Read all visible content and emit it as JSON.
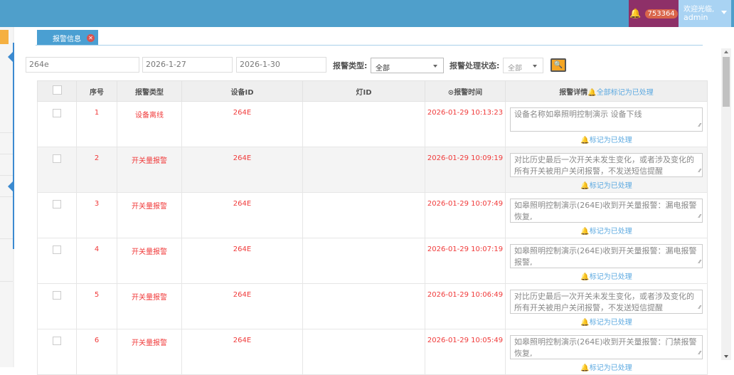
{
  "header": {
    "notification_count": "753364",
    "welcome": "欢迎光临,",
    "user": "admin"
  },
  "tab": {
    "label": "报警信息",
    "close": "✕"
  },
  "filters": {
    "keyword": "264e",
    "start_date": "2026-1-27",
    "end_date": "2026-1-30",
    "type_label": "报警类型:",
    "type_value": "全部",
    "status_label": "报警处理状态:",
    "status_value": "全部"
  },
  "table": {
    "headers": [
      "序号",
      "报警类型",
      "设备ID",
      "灯ID",
      "报警时间",
      "报警详情"
    ],
    "mark_all": "全部标记为已处理",
    "mark_label": "标记为已处理",
    "rows": [
      {
        "no": "1",
        "type": "设备离线",
        "device": "264E",
        "lamp": "",
        "time": "2026-01-29 10:13:23",
        "detail": "设备名称如皋照明控制演示 设备下线"
      },
      {
        "no": "2",
        "type": "开关量报警",
        "device": "264E",
        "lamp": "",
        "time": "2026-01-29 10:09:19",
        "detail": "对比历史最后一次开关未发生变化，或者涉及变化的所有开关被用户关闭报警，不发送短信提醒"
      },
      {
        "no": "3",
        "type": "开关量报警",
        "device": "264E",
        "lamp": "",
        "time": "2026-01-29 10:07:49",
        "detail": "如皋照明控制演示(264E)收到开关量报警：漏电报警恢复,"
      },
      {
        "no": "4",
        "type": "开关量报警",
        "device": "264E",
        "lamp": "",
        "time": "2026-01-29 10:07:19",
        "detail": "如皋照明控制演示(264E)收到开关量报警：漏电报警报警,"
      },
      {
        "no": "5",
        "type": "开关量报警",
        "device": "264E",
        "lamp": "",
        "time": "2026-01-29 10:06:49",
        "detail": "对比历史最后一次开关未发生变化，或者涉及变化的所有开关被用户关闭报警，不发送短信提醒"
      },
      {
        "no": "6",
        "type": "开关量报警",
        "device": "264E",
        "lamp": "",
        "time": "2026-01-29 10:05:49",
        "detail": "如皋照明控制演示(264E)收到开关量报警：门禁报警恢复,"
      }
    ]
  },
  "colors": {
    "header": "#4f9fcb",
    "alert": "#f03a3a",
    "link": "#5aa8e0",
    "search": "#f5a623"
  }
}
